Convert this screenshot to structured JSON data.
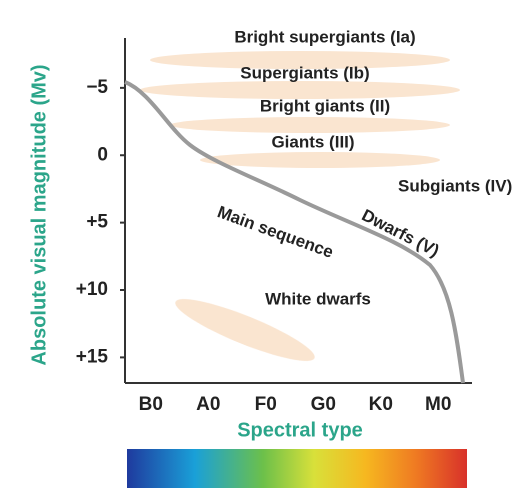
{
  "y_axis": {
    "label": "Absolute visual magnitude (Mv)",
    "lim": [
      -8.7,
      16.9
    ],
    "ticks": [
      {
        "value": -5,
        "label": "−5"
      },
      0,
      {
        "value": 5,
        "label": "+5"
      },
      {
        "value": 10,
        "label": "+10"
      },
      {
        "value": 15,
        "label": "+15"
      }
    ]
  },
  "x_axis": {
    "label": "Spectral type",
    "categories": [
      "B0",
      "A0",
      "F0",
      "G0",
      "K0",
      "M0"
    ]
  },
  "regions": [
    "Bright supergiants (Ia)",
    "Supergiants (Ib)",
    "Bright giants (II)",
    "Giants (III)",
    "Subgiants (IV)",
    "Main sequence",
    "Dwarfs (V)",
    "White dwarfs"
  ]
}
